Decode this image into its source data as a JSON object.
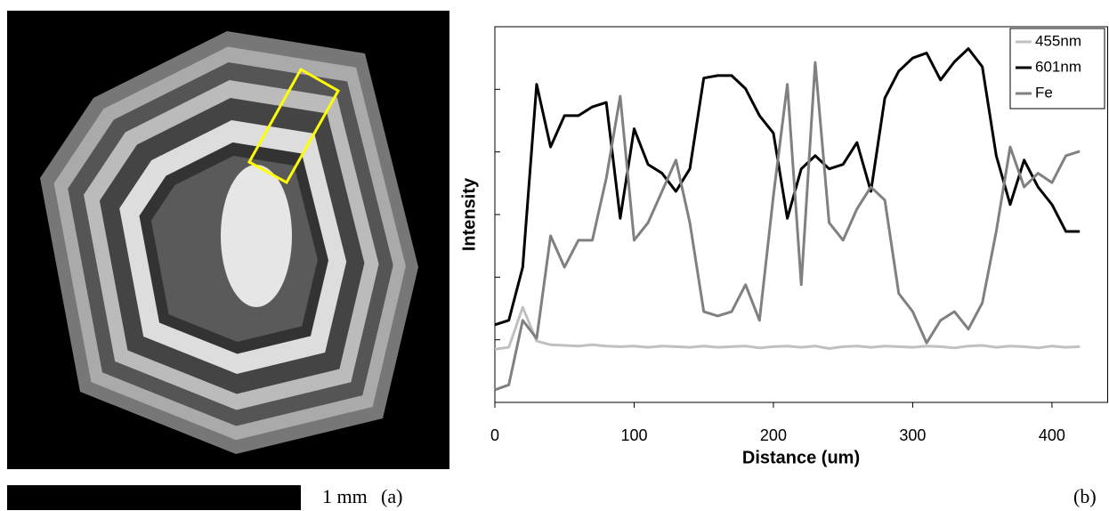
{
  "panel_a": {
    "scale_label": "1 mm",
    "label": "(a)"
  },
  "chart_data": {
    "type": "line",
    "panel_label": "(b)",
    "xlabel": "Distance (um)",
    "ylabel": "Intensity",
    "x": [
      0,
      10,
      20,
      30,
      40,
      50,
      60,
      70,
      80,
      90,
      100,
      110,
      120,
      130,
      140,
      150,
      160,
      170,
      180,
      190,
      200,
      210,
      220,
      230,
      240,
      250,
      260,
      270,
      280,
      290,
      300,
      310,
      320,
      330,
      340,
      350,
      360,
      370,
      380,
      390,
      400,
      410,
      420
    ],
    "series": [
      {
        "name": "455nm",
        "color": "#c0c0c0",
        "values": [
          0.85,
          0.88,
          1.52,
          0.98,
          0.92,
          0.91,
          0.9,
          0.92,
          0.9,
          0.89,
          0.9,
          0.88,
          0.9,
          0.89,
          0.88,
          0.9,
          0.88,
          0.89,
          0.9,
          0.87,
          0.89,
          0.9,
          0.88,
          0.9,
          0.86,
          0.89,
          0.9,
          0.88,
          0.9,
          0.89,
          0.88,
          0.9,
          0.89,
          0.87,
          0.9,
          0.91,
          0.88,
          0.9,
          0.89,
          0.87,
          0.9,
          0.88,
          0.89
        ]
      },
      {
        "name": "601nm",
        "color": "#000000",
        "values": [
          1.24,
          1.31,
          2.16,
          5.08,
          4.08,
          4.58,
          4.58,
          4.72,
          4.79,
          2.94,
          4.37,
          3.8,
          3.66,
          3.37,
          3.73,
          5.18,
          5.22,
          5.22,
          5.01,
          4.58,
          4.3,
          2.94,
          3.73,
          3.94,
          3.73,
          3.8,
          4.15,
          3.37,
          4.86,
          5.29,
          5.5,
          5.58,
          5.15,
          5.44,
          5.65,
          5.36,
          3.94,
          3.16,
          3.87,
          3.44,
          3.16,
          2.73,
          2.73
        ]
      },
      {
        "name": "Fe",
        "color": "#808080",
        "values": [
          0.2,
          0.28,
          1.31,
          1.02,
          2.66,
          2.16,
          2.59,
          2.59,
          3.58,
          4.89,
          2.59,
          2.87,
          3.37,
          3.87,
          2.87,
          1.45,
          1.38,
          1.45,
          1.88,
          1.31,
          3.3,
          5.08,
          1.88,
          5.43,
          2.87,
          2.59,
          3.09,
          3.44,
          3.23,
          1.74,
          1.45,
          0.95,
          1.31,
          1.45,
          1.17,
          1.59,
          2.73,
          4.08,
          3.44,
          3.66,
          3.51,
          3.94,
          4.01
        ]
      }
    ],
    "xlim": [
      0,
      440
    ],
    "xticks": [
      0,
      100,
      200,
      300,
      400
    ],
    "ylim": [
      0,
      6
    ],
    "yticks": [
      0,
      1,
      2,
      3,
      4,
      5,
      6
    ],
    "legend": "upper right"
  }
}
